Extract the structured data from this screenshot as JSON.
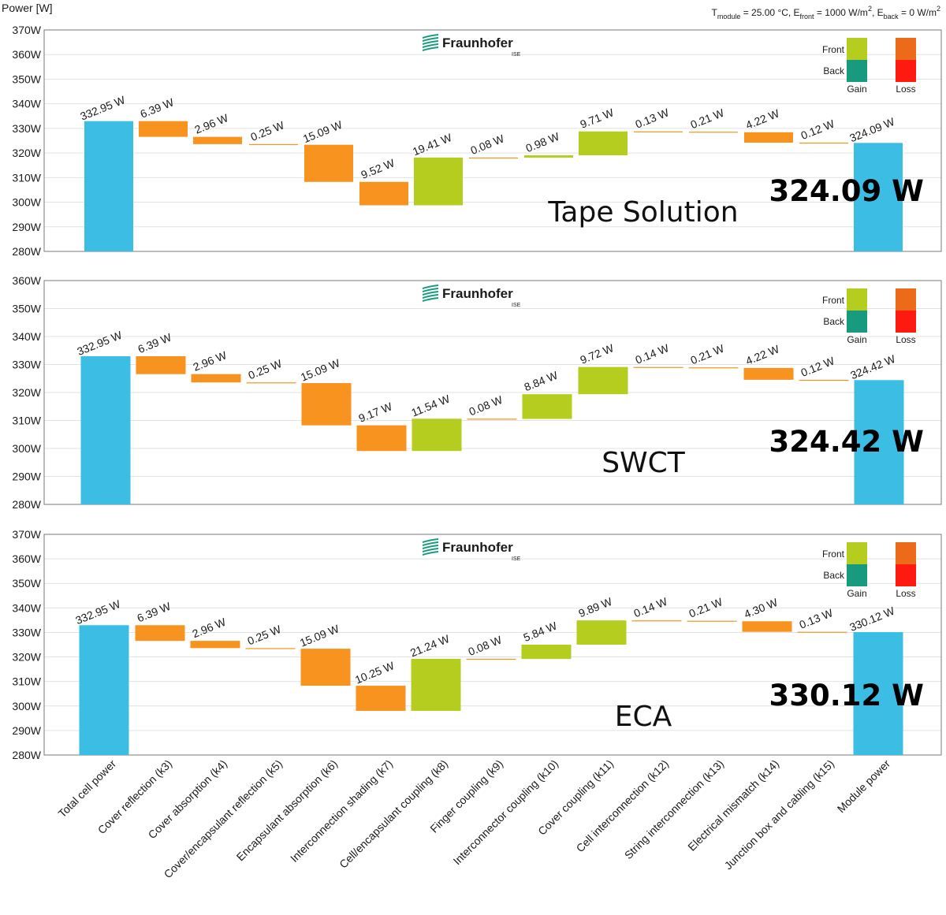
{
  "y_axis_title": "Power [W]",
  "conditions": "T_module = 25.00 °C,  E_front = 1000 W/m²,  E_back = 0 W/m²",
  "logo": {
    "name": "Fraunhofer",
    "sub": "ISE"
  },
  "legend": {
    "front": "Front",
    "back": "Back",
    "gain": "Gain",
    "loss": "Loss"
  },
  "colors": {
    "total": "#3bbde4",
    "loss_front": "#f7931e",
    "gain_front": "#b5cd1f",
    "legend_gain_front": "#b5cd1f",
    "legend_gain_back": "#179a7e",
    "legend_loss_front": "#ec6b1a",
    "legend_loss_back": "#ff1a0f",
    "grid": "#e2e2e2",
    "frame": "#7a7a7a"
  },
  "chart_data": [
    {
      "type": "waterfall",
      "name": "Tape Solution",
      "total_label": "324.09 W",
      "ylim": [
        280,
        370
      ],
      "yticks": [
        "280W",
        "290W",
        "300W",
        "310W",
        "320W",
        "330W",
        "340W",
        "350W",
        "360W",
        "370W"
      ],
      "categories": [
        "Total cell power",
        "Cover reflection (k3)",
        "Cover absorption (k4)",
        "Cover/encapsulant reflection (k5)",
        "Encapsulant absorption (k6)",
        "Interconnection shading (k7)",
        "Cell/encapsulant coupling (k8)",
        "Finger coupling (k9)",
        "Interconnector coupling (k10)",
        "Cover coupling (k11)",
        "Cell interconnection (k12)",
        "String interconnection (k13)",
        "Electrical mismatch (k14)",
        "Junction box and cabling (k15)",
        "Module power"
      ],
      "values": [
        332.95,
        -6.39,
        -2.96,
        -0.25,
        -15.09,
        -9.52,
        19.41,
        -0.08,
        0.98,
        9.71,
        -0.13,
        -0.21,
        -4.22,
        -0.12,
        324.09
      ],
      "labels": [
        "332.95 W",
        "6.39 W",
        "2.96 W",
        "0.25 W",
        "15.09 W",
        "9.52 W",
        "19.41 W",
        "0.08 W",
        "0.98 W",
        "9.71 W",
        "0.13 W",
        "0.21 W",
        "4.22 W",
        "0.12 W",
        "324.09 W"
      ]
    },
    {
      "type": "waterfall",
      "name": "SWCT",
      "total_label": "324.42 W",
      "ylim": [
        280,
        360
      ],
      "yticks": [
        "280W",
        "290W",
        "300W",
        "310W",
        "320W",
        "330W",
        "340W",
        "350W",
        "360W"
      ],
      "categories": [
        "Total cell power",
        "Cover reflection (k3)",
        "Cover absorption (k4)",
        "Cover/encapsulant reflection (k5)",
        "Encapsulant absorption (k6)",
        "Interconnection shading (k7)",
        "Cell/encapsulant coupling (k8)",
        "Finger coupling (k9)",
        "Interconnector coupling (k10)",
        "Cover coupling (k11)",
        "Cell interconnection (k12)",
        "String interconnection (k13)",
        "Electrical mismatch (k14)",
        "Junction box and cabling (k15)",
        "Module power"
      ],
      "values": [
        332.95,
        -6.39,
        -2.96,
        -0.25,
        -15.09,
        -9.17,
        11.54,
        -0.08,
        8.84,
        9.72,
        -0.14,
        -0.21,
        -4.22,
        -0.12,
        324.42
      ],
      "labels": [
        "332.95 W",
        "6.39 W",
        "2.96 W",
        "0.25 W",
        "15.09 W",
        "9.17 W",
        "11.54 W",
        "0.08 W",
        "8.84 W",
        "9.72 W",
        "0.14 W",
        "0.21 W",
        "4.22 W",
        "0.12 W",
        "324.42 W"
      ]
    },
    {
      "type": "waterfall",
      "name": "ECA",
      "total_label": "330.12 W",
      "ylim": [
        280,
        370
      ],
      "yticks": [
        "280W",
        "290W",
        "300W",
        "310W",
        "320W",
        "330W",
        "340W",
        "350W",
        "360W",
        "370W"
      ],
      "categories": [
        "Total cell power",
        "Cover reflection (k3)",
        "Cover absorption (k4)",
        "Cover/encapsulant reflection (k5)",
        "Encapsulant absorption (k6)",
        "Interconnection shading (k7)",
        "Cell/encapsulant coupling (k8)",
        "Finger coupling (k9)",
        "Interconnector coupling (k10)",
        "Cover coupling (k11)",
        "Cell interconnection (k12)",
        "String interconnection (k13)",
        "Electrical mismatch (k14)",
        "Junction box and cabling (k15)",
        "Module power"
      ],
      "values": [
        332.95,
        -6.39,
        -2.96,
        -0.25,
        -15.09,
        -10.25,
        21.24,
        -0.08,
        5.84,
        9.89,
        -0.14,
        -0.21,
        -4.3,
        -0.13,
        330.12
      ],
      "labels": [
        "332.95 W",
        "6.39 W",
        "2.96 W",
        "0.25 W",
        "15.09 W",
        "10.25 W",
        "21.24 W",
        "0.08 W",
        "5.84 W",
        "9.89 W",
        "0.14 W",
        "0.21 W",
        "4.30 W",
        "0.13 W",
        "330.12 W"
      ]
    }
  ]
}
